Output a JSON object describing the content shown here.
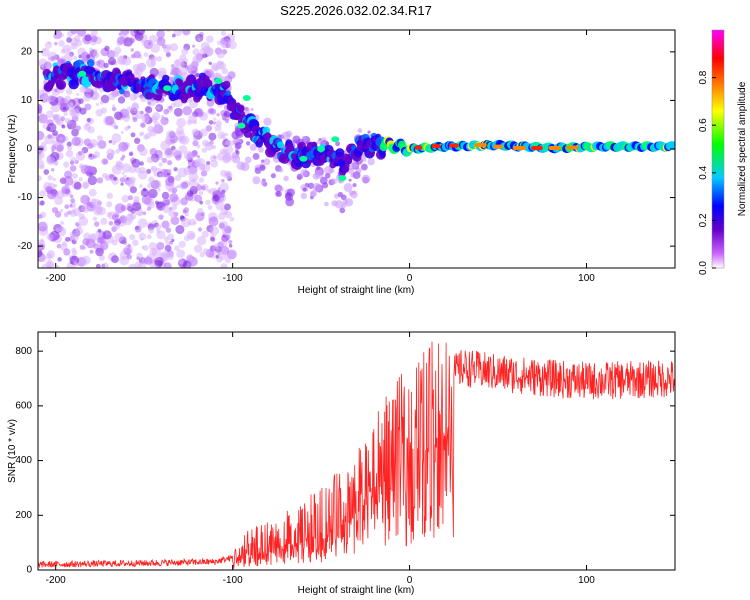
{
  "title": "S225.2026.032.02.34.R17",
  "chart_data": [
    {
      "type": "heatmap",
      "title": "S225.2026.032.02.34.R17",
      "xlabel": "Height of straight line (km)",
      "ylabel": "Frequency (Hz)",
      "xlim": [
        -210,
        150
      ],
      "ylim": [
        -24.5,
        24.5
      ],
      "xticks": [
        -200,
        -100,
        0,
        100
      ],
      "yticks": [
        -20,
        -10,
        0,
        10,
        20
      ],
      "xtick_labels": [
        "-200",
        "-100",
        "0",
        "100"
      ],
      "ytick_labels": [
        "-20",
        "-10",
        "0",
        "10",
        "20"
      ],
      "colorbar": {
        "label": "Normalized spectral amplitude",
        "range": [
          0.0,
          1.0
        ],
        "ticks": [
          0.0,
          0.2,
          0.4,
          0.6,
          0.8
        ],
        "tick_labels": [
          "0.0",
          "0.2",
          "0.4",
          "0.6",
          "0.8"
        ],
        "colormap": [
          "#ffffff",
          "#cc66ff",
          "#6600cc",
          "#0000ff",
          "#00ccff",
          "#00ff00",
          "#ffff00",
          "#ff8800",
          "#ff0000",
          "#ff00ff"
        ]
      },
      "ridge": {
        "x": [
          -200,
          -185,
          -170,
          -150,
          -130,
          -115,
          -105,
          -95,
          -85,
          -75,
          -65,
          -55,
          -45,
          -38,
          -30,
          -20,
          -10,
          0,
          20,
          50,
          80,
          110,
          150
        ],
        "y": [
          15,
          16,
          14.5,
          13,
          12,
          13,
          12,
          6,
          3,
          0.5,
          -1.5,
          -1,
          -1.5,
          -3,
          0.5,
          1,
          0.8,
          0,
          0.5,
          0.8,
          0.2,
          0.5,
          0.5
        ]
      }
    },
    {
      "type": "line",
      "xlabel": "Height of straight line (km)",
      "ylabel": "SNR (10 * v/v)",
      "xlim": [
        -210,
        150
      ],
      "ylim": [
        0,
        870
      ],
      "xticks": [
        -200,
        -100,
        0,
        100
      ],
      "yticks": [
        0,
        200,
        400,
        600,
        800
      ],
      "xtick_labels": [
        "-200",
        "-100",
        "0",
        "100"
      ],
      "ytick_labels": [
        "0",
        "200",
        "400",
        "600",
        "800"
      ],
      "color": "#ff2222",
      "trend": {
        "x": [
          -210,
          -150,
          -110,
          -100,
          -90,
          -70,
          -50,
          -35,
          -25,
          -20,
          -15,
          -5,
          5,
          15,
          25,
          30,
          50,
          80,
          100,
          150
        ],
        "y": [
          20,
          25,
          30,
          45,
          80,
          120,
          180,
          260,
          330,
          400,
          460,
          540,
          600,
          660,
          720,
          740,
          720,
          700,
          690,
          700
        ]
      }
    }
  ]
}
